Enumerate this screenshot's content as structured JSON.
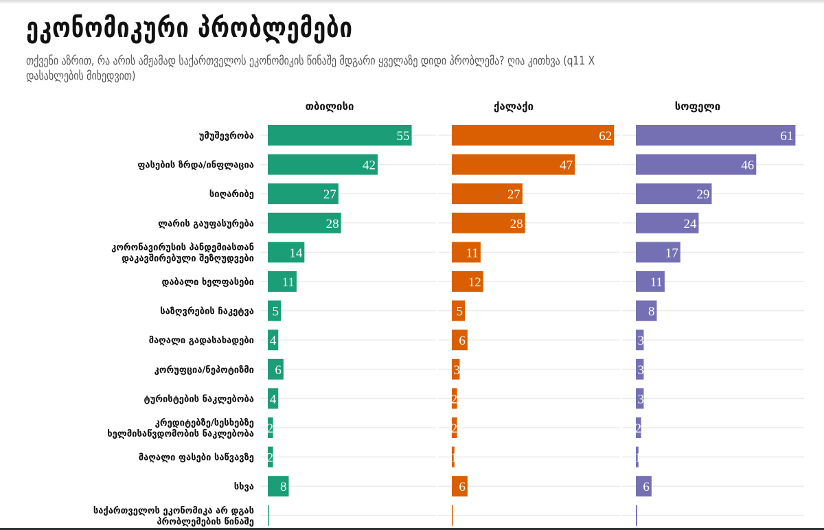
{
  "title": "ეკონომიკური პრობლემები",
  "subtitle": "თქვენი აზრით, რა არის ამჟამად საქართველოს ეკონომიკის წინაშე მდგარი ყველაზე დიდი პრობლემა? ღია კითხვა (q11 X დასახლების მიხედვით)",
  "chart_data": {
    "type": "bar",
    "orientation": "horizontal",
    "facets": [
      "თბილისი",
      "ქალაქი",
      "სოფელი"
    ],
    "categories": [
      [
        "უმუშევრობა"
      ],
      [
        "ფასების ზრდა/ინფლაცია"
      ],
      [
        "სიღარიბე"
      ],
      [
        "ლარის გაუფასურება"
      ],
      [
        "კორონავირუსის პანდემიასთან",
        "დაკავშირებული შეზღუდვები"
      ],
      [
        "დაბალი ხელფასები"
      ],
      [
        "საზღვრების ჩაკეტვა"
      ],
      [
        "მაღალი გადასახადები"
      ],
      [
        "კორუფცია/ნეპოტიზმი"
      ],
      [
        "ტურისტების ნაკლებობა"
      ],
      [
        "კრედიტებზე/სესხებზე",
        "ხელმისაწვდომობის ნაკლებობა"
      ],
      [
        "მაღალი ფასები საწვავზე"
      ],
      [
        "სხვა"
      ],
      [
        "საქართველოს ეკონომიკა არ დგას",
        "პრობლემების წინაშე"
      ]
    ],
    "series": [
      {
        "name": "თბილისი",
        "color": "#1b9e77",
        "values": [
          55,
          42,
          27,
          28,
          14,
          11,
          5,
          4,
          6,
          4,
          2,
          2,
          8,
          0.3
        ]
      },
      {
        "name": "ქალაქი",
        "color": "#d95f02",
        "values": [
          62,
          47,
          27,
          28,
          11,
          12,
          5,
          6,
          3,
          2,
          2,
          1,
          6,
          0.1
        ]
      },
      {
        "name": "სოფელი",
        "color": "#7570b3",
        "values": [
          61,
          46,
          29,
          24,
          17,
          11,
          8,
          3,
          3,
          3,
          2,
          1,
          6,
          0.5
        ]
      }
    ],
    "xlim": [
      0,
      64
    ],
    "grid": true,
    "data_labels": true,
    "xlabel": "",
    "ylabel": ""
  }
}
